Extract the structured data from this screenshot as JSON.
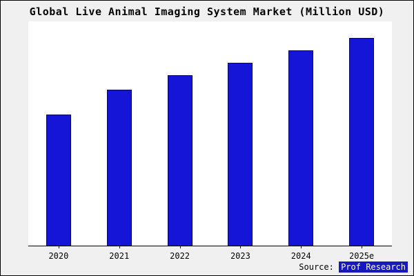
{
  "title": "Global Live Animal Imaging System Market (Million USD)",
  "source": {
    "prefix": "Source: ",
    "name": "Prof Research"
  },
  "colors": {
    "background": "#f0f0f0",
    "plot_background": "#ffffff",
    "bar_fill": "#1515d8",
    "bar_border": "#000066",
    "source_badge_bg": "#1818c0",
    "source_badge_text": "#ffffff"
  },
  "chart_data": {
    "type": "bar",
    "categories": [
      "2020",
      "2021",
      "2022",
      "2023",
      "2024",
      "2025e"
    ],
    "values": [
      63,
      75,
      82,
      88,
      94,
      100
    ],
    "title": "Global Live Animal Imaging System Market (Million USD)",
    "xlabel": "",
    "ylabel": "",
    "ylim": [
      0,
      108
    ],
    "grid": false,
    "legend": false,
    "bar_count": 6
  }
}
